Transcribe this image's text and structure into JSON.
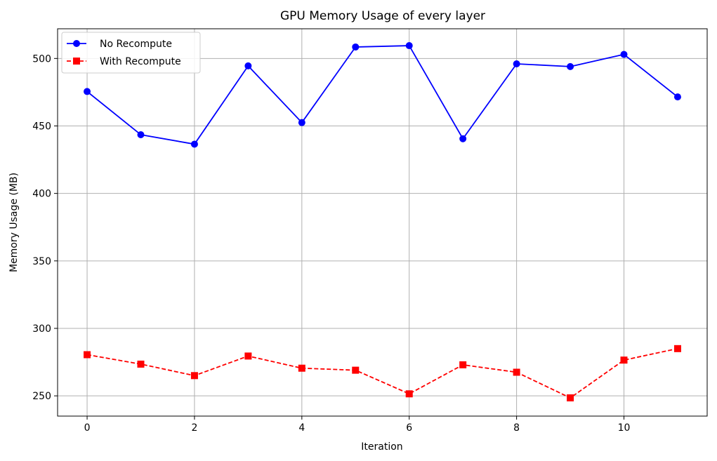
{
  "chart_data": {
    "type": "line",
    "title": "GPU Memory Usage of every layer",
    "xlabel": "Iteration",
    "ylabel": "Memory Usage (MB)",
    "x": [
      0,
      1,
      2,
      3,
      4,
      5,
      6,
      7,
      8,
      9,
      10,
      11
    ],
    "xlim": [
      -0.55,
      11.55
    ],
    "ylim": [
      235,
      522
    ],
    "xticks": [
      0,
      2,
      4,
      6,
      8,
      10
    ],
    "yticks": [
      250,
      300,
      350,
      400,
      450,
      500
    ],
    "grid": true,
    "legend_position": "top-left",
    "series": [
      {
        "name": "No Recompute",
        "color": "#0000ff",
        "line_style": "solid",
        "marker": "circle",
        "values": [
          475.5,
          443.5,
          436.5,
          494.5,
          452.5,
          508.5,
          509.5,
          440.5,
          496,
          494,
          503,
          471.5
        ]
      },
      {
        "name": "With Recompute",
        "color": "#ff0000",
        "line_style": "dashed",
        "marker": "square",
        "values": [
          280.5,
          273.5,
          265,
          279.5,
          270.5,
          269,
          251.5,
          273,
          267.5,
          248.5,
          276.5,
          285
        ]
      }
    ]
  }
}
